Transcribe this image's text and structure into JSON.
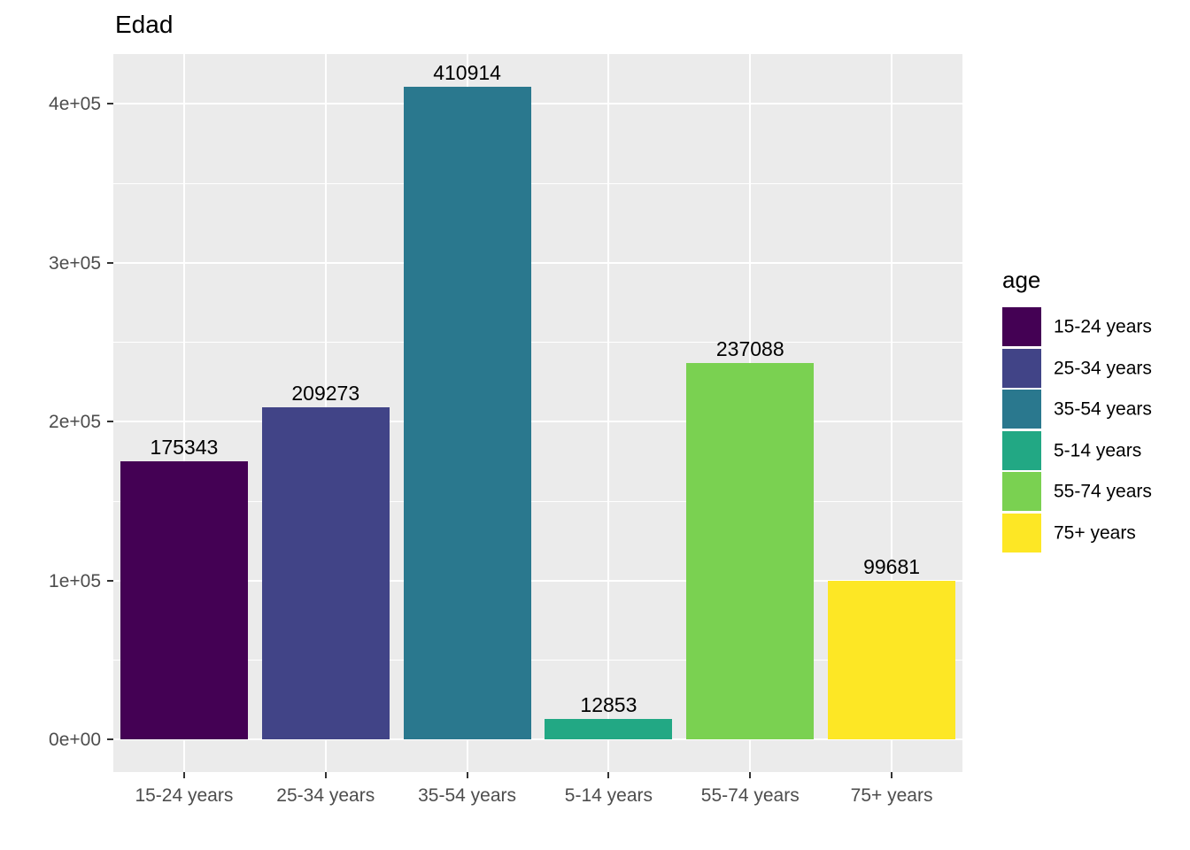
{
  "chart_data": {
    "type": "bar",
    "title": "Edad",
    "categories": [
      "15-24 years",
      "25-34 years",
      "35-54 years",
      "5-14 years",
      "55-74 years",
      "75+ years"
    ],
    "values": [
      175343,
      209273,
      410914,
      12853,
      237088,
      99681
    ],
    "bar_labels": [
      "175343",
      "209273",
      "410914",
      "12853",
      "237088",
      "99681"
    ],
    "colors": [
      "#440154",
      "#414487",
      "#2A788E",
      "#22A884",
      "#7AD151",
      "#FDE725"
    ],
    "xlabel": "",
    "ylabel": "",
    "y_ticks": [
      {
        "value": 0,
        "label": "0e+00"
      },
      {
        "value": 100000,
        "label": "1e+05"
      },
      {
        "value": 200000,
        "label": "2e+05"
      },
      {
        "value": 300000,
        "label": "3e+05"
      },
      {
        "value": 400000,
        "label": "4e+05"
      }
    ],
    "y_minor_ticks": [
      50000,
      150000,
      250000,
      350000
    ],
    "ylim": [
      0,
      431460
    ],
    "grid": "on",
    "legend": {
      "title": "age",
      "position": "right",
      "items": [
        {
          "label": "15-24 years",
          "color": "#440154"
        },
        {
          "label": "25-34 years",
          "color": "#414487"
        },
        {
          "label": "35-54 years",
          "color": "#2A788E"
        },
        {
          "label": "5-14 years",
          "color": "#22A884"
        },
        {
          "label": "55-74 years",
          "color": "#7AD151"
        },
        {
          "label": "75+ years",
          "color": "#FDE725"
        }
      ]
    },
    "style": {
      "panel_background": "#EBEBEB",
      "grid_color": "#FFFFFF",
      "axis_text_color": "#4D4D4D",
      "tick_color": "#333333",
      "label_text_color": "#000000"
    }
  }
}
